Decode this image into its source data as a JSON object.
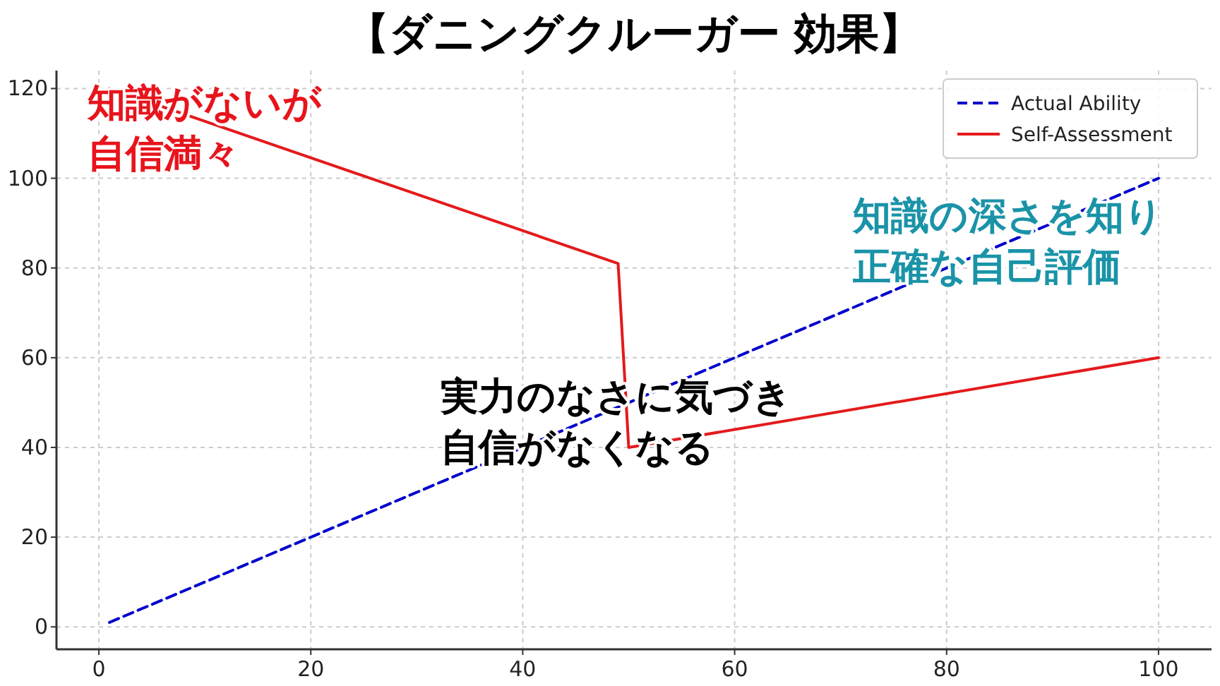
{
  "chart_data": {
    "type": "line",
    "title": "【ダニングクルーガー 効果】",
    "xlim": [
      -4,
      105
    ],
    "xticks": [
      0,
      20,
      40,
      60,
      80,
      100
    ],
    "ylim": [
      -5,
      124
    ],
    "yticks": [
      0,
      20,
      40,
      60,
      80,
      100,
      120
    ],
    "series": [
      {
        "name": "Actual Ability",
        "color": "#0000cc",
        "line_style": "dashed",
        "x": [
          1,
          100
        ],
        "values": [
          1,
          100
        ]
      },
      {
        "name": "Self-Assessment",
        "color": "#e41a1c",
        "line_style": "solid",
        "x": [
          1,
          49,
          50,
          100
        ],
        "values": [
          120,
          81,
          40,
          60
        ]
      }
    ],
    "annotations": [
      "知識がないが自信満々",
      "知識の深さを知り正確な自己評価",
      "実力のなさに気づき自信がなくなる"
    ],
    "grid": true,
    "legend": "top right"
  }
}
